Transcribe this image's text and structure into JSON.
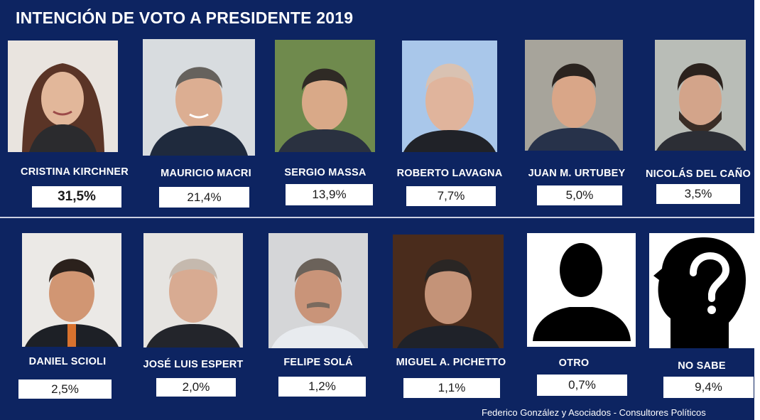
{
  "header": {
    "title": "INTENCIÓN DE VOTO A PRESIDENTE 2019"
  },
  "footer": {
    "credit": "Federico González y Asociados - Consultores Políticos"
  },
  "colors": {
    "background": "#0d2461",
    "box": "#ffffff",
    "text": "#ffffff"
  },
  "chart_data": {
    "type": "table",
    "title": "INTENCIÓN DE VOTO A PRESIDENTE 2019",
    "categories": [
      "CRISTINA KIRCHNER",
      "MAURICIO MACRI",
      "SERGIO MASSA",
      "ROBERTO LAVAGNA",
      "JUAN M. URTUBEY",
      "NICOLÁS DEL CAÑO",
      "DANIEL SCIOLI",
      "JOSÉ LUIS ESPERT",
      "FELIPE SOLÁ",
      "MIGUEL A. PICHETTO",
      "OTRO",
      "NO SABE"
    ],
    "values": [
      31.5,
      21.4,
      13.9,
      7.7,
      5.0,
      3.5,
      2.5,
      2.0,
      1.2,
      1.1,
      0.7,
      9.4
    ],
    "labels": [
      "31,5%",
      "21,4%",
      "13,9%",
      "7,7%",
      "5,0%",
      "3,5%",
      "2,5%",
      "2,0%",
      "1,2%",
      "1,1%",
      "0,7%",
      "9,4%"
    ]
  },
  "candidates": [
    {
      "name": "CRISTINA KIRCHNER",
      "value": "31,5%",
      "photo": "portrait-woman"
    },
    {
      "name": "MAURICIO MACRI",
      "value": "21,4%",
      "photo": "portrait-man"
    },
    {
      "name": "SERGIO MASSA",
      "value": "13,9%",
      "photo": "portrait-man"
    },
    {
      "name": "ROBERTO LAVAGNA",
      "value": "7,7%",
      "photo": "portrait-man"
    },
    {
      "name": "JUAN M. URTUBEY",
      "value": "5,0%",
      "photo": "portrait-man"
    },
    {
      "name": "NICOLÁS DEL CAÑO",
      "value": "3,5%",
      "photo": "portrait-man"
    },
    {
      "name": "DANIEL SCIOLI",
      "value": "2,5%",
      "photo": "portrait-man"
    },
    {
      "name": "JOSÉ LUIS ESPERT",
      "value": "2,0%",
      "photo": "portrait-man"
    },
    {
      "name": "FELIPE SOLÁ",
      "value": "1,2%",
      "photo": "portrait-man"
    },
    {
      "name": "MIGUEL A. PICHETTO",
      "value": "1,1%",
      "photo": "portrait-man"
    },
    {
      "name": "OTRO",
      "value": "0,7%",
      "photo": "silhouette-icon"
    },
    {
      "name": "NO SABE",
      "value": "9,4%",
      "photo": "question-head-icon"
    }
  ]
}
